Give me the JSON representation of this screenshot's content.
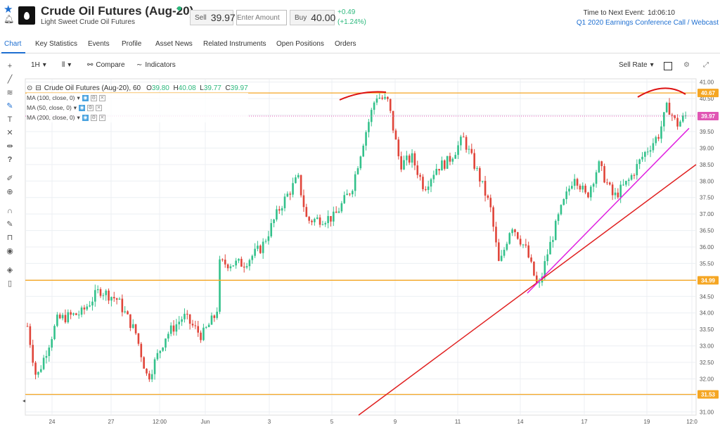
{
  "header": {
    "title": "Crude Oil Futures (Aug-20)",
    "subtitle": "Light Sweet Crude Oil Futures",
    "sell_label": "Sell",
    "sell_price": "39.97",
    "amount_placeholder": "Enter Amount",
    "buy_label": "Buy",
    "buy_price": "40.00",
    "change": "+0.49",
    "change_pct": "(+1.24%)",
    "next_event_label": "Time to Next Event:",
    "next_event_time": "1d:06:10",
    "next_event_name": "Q1 2020 Earnings Conference Call / Webcast",
    "status_color": "#2db87d"
  },
  "tabs": [
    "Chart",
    "Key Statistics",
    "Events",
    "Profile",
    "Asset News",
    "Related Instruments",
    "Open Positions",
    "Orders"
  ],
  "toolbar": {
    "interval": "1H",
    "compare": "Compare",
    "indicators": "Indicators",
    "sell_rate": "Sell Rate"
  },
  "legend": {
    "name": "Crude Oil Futures (Aug-20), 60",
    "o_label": "O",
    "o": "39.80",
    "h_label": "H",
    "h": "40.08",
    "l_label": "L",
    "l": "39.77",
    "c_label": "C",
    "c": "39.97",
    "ma": [
      "MA (100, close, 0)",
      "MA (50, close, 0)",
      "MA (200, close, 0)"
    ]
  },
  "left_toolbar_icons": [
    "crosshair-icon",
    "trend-line-icon",
    "fib-icon",
    "brush-icon",
    "text-icon",
    "pattern-icon",
    "measure-icon",
    "help-icon",
    "ruler-icon",
    "zoom-icon",
    "magnet-icon",
    "lock-draw-icon",
    "lock-icon",
    "eye-icon",
    "layers-icon",
    "trash-icon"
  ],
  "chart_data": {
    "type": "candlestick",
    "y_ticks": [
      "41.00",
      "40.50",
      "40.00",
      "39.50",
      "39.00",
      "38.50",
      "38.00",
      "37.50",
      "37.00",
      "36.50",
      "36.00",
      "35.50",
      "35.00",
      "34.50",
      "34.00",
      "33.50",
      "33.00",
      "32.50",
      "32.00",
      "31.50",
      "31.00"
    ],
    "x_ticks": [
      "24",
      "27",
      "12:00",
      "Jun",
      "3",
      "5",
      "9",
      "11",
      "14",
      "17",
      "19",
      "12:0"
    ],
    "ylim": [
      30.9,
      41.1
    ],
    "price_labels": [
      {
        "text": "40.67",
        "value": 40.67,
        "color": "#f5a623"
      },
      {
        "text": "39.97",
        "value": 39.97,
        "color": "#e056b4"
      },
      {
        "text": "34.99",
        "value": 34.99,
        "color": "#f5a623"
      },
      {
        "text": "31.53",
        "value": 31.53,
        "color": "#f5a623"
      }
    ],
    "horizontal_levels": [
      40.67,
      34.99,
      31.53
    ],
    "current_price_line": 39.97,
    "up_color": "#33c18b",
    "down_color": "#e0453a",
    "level_color": "#f5a623",
    "trend_color": "#e02020",
    "support_color": "#e020e0",
    "path": [
      {
        "t": 0,
        "v": 33.6
      },
      {
        "t": 3,
        "v": 32.0
      },
      {
        "t": 10,
        "v": 33.8
      },
      {
        "t": 18,
        "v": 34.0
      },
      {
        "t": 24,
        "v": 34.7
      },
      {
        "t": 30,
        "v": 34.4
      },
      {
        "t": 36,
        "v": 33.4
      },
      {
        "t": 40,
        "v": 32.0
      },
      {
        "t": 46,
        "v": 33.3
      },
      {
        "t": 52,
        "v": 33.9
      },
      {
        "t": 58,
        "v": 33.3
      },
      {
        "t": 63,
        "v": 34.0
      },
      {
        "t": 64,
        "v": 35.5
      },
      {
        "t": 72,
        "v": 35.5
      },
      {
        "t": 78,
        "v": 36.0
      },
      {
        "t": 84,
        "v": 37.2
      },
      {
        "t": 90,
        "v": 38.1
      },
      {
        "t": 93,
        "v": 36.8
      },
      {
        "t": 102,
        "v": 36.9
      },
      {
        "t": 108,
        "v": 37.8
      },
      {
        "t": 112,
        "v": 39.3
      },
      {
        "t": 116,
        "v": 40.6
      },
      {
        "t": 120,
        "v": 40.4
      },
      {
        "t": 124,
        "v": 38.5
      },
      {
        "t": 128,
        "v": 38.7
      },
      {
        "t": 132,
        "v": 37.8
      },
      {
        "t": 136,
        "v": 38.4
      },
      {
        "t": 140,
        "v": 38.6
      },
      {
        "t": 145,
        "v": 39.3
      },
      {
        "t": 150,
        "v": 38.2
      },
      {
        "t": 154,
        "v": 37.2
      },
      {
        "t": 157,
        "v": 35.4
      },
      {
        "t": 161,
        "v": 36.7
      },
      {
        "t": 166,
        "v": 35.9
      },
      {
        "t": 170,
        "v": 34.7
      },
      {
        "t": 173,
        "v": 35.8
      },
      {
        "t": 177,
        "v": 37.0
      },
      {
        "t": 182,
        "v": 38.2
      },
      {
        "t": 186,
        "v": 37.5
      },
      {
        "t": 190,
        "v": 38.5
      },
      {
        "t": 195,
        "v": 37.5
      },
      {
        "t": 200,
        "v": 38.0
      },
      {
        "t": 205,
        "v": 38.8
      },
      {
        "t": 210,
        "v": 39.4
      },
      {
        "t": 213,
        "v": 40.3
      },
      {
        "t": 216,
        "v": 39.7
      },
      {
        "t": 219,
        "v": 39.97
      }
    ]
  }
}
